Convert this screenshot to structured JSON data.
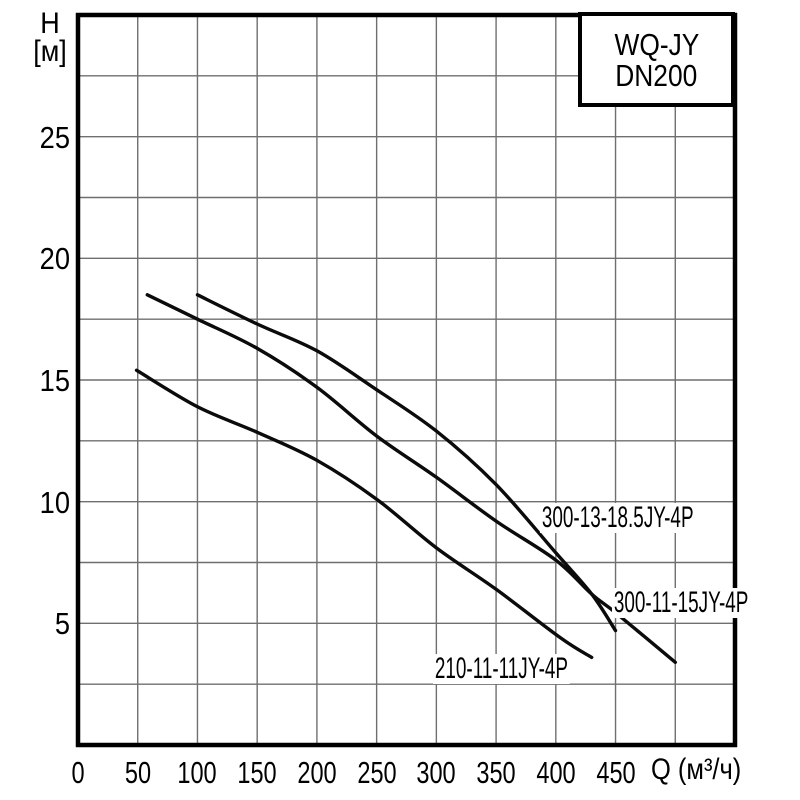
{
  "title_box": {
    "line1": "WQ-JY",
    "line2": "DN200"
  },
  "y_axis": {
    "title_line1": "H",
    "title_line2": "[м]",
    "tick_labels": [
      "25",
      "20",
      "15",
      "10",
      "5"
    ],
    "tick_values": [
      25,
      20,
      15,
      10,
      5
    ]
  },
  "x_axis": {
    "tick_labels": [
      "0",
      "50",
      "100",
      "150",
      "200",
      "250",
      "300",
      "350",
      "400",
      "450"
    ],
    "tick_values": [
      0,
      50,
      100,
      150,
      200,
      250,
      300,
      350,
      400,
      450
    ],
    "unit_label": "Q (м³/ч)"
  },
  "chart_data": {
    "type": "line",
    "title": "WQ-JY DN200",
    "xlabel": "Q (м³/ч)",
    "ylabel": "H [м]",
    "xlim": [
      0,
      550
    ],
    "ylim": [
      0,
      30
    ],
    "grid": {
      "visible": true,
      "x_step": 50,
      "y_step": 2.5,
      "color": "#6f6f6f"
    },
    "axis_color": "#000000",
    "curve_color": "#0b0b0b",
    "legend_position": "inline-labels",
    "series": [
      {
        "name": "300-13-18.5JY-4P",
        "points": [
          [
            100,
            18.5
          ],
          [
            150,
            17.3
          ],
          [
            200,
            16.2
          ],
          [
            250,
            14.6
          ],
          [
            300,
            12.9
          ],
          [
            350,
            10.7
          ],
          [
            400,
            7.9
          ],
          [
            430,
            6.2
          ],
          [
            450,
            4.7
          ]
        ]
      },
      {
        "name": "300-11-15JY-4P",
        "points": [
          [
            58,
            18.5
          ],
          [
            100,
            17.5
          ],
          [
            150,
            16.3
          ],
          [
            200,
            14.7
          ],
          [
            250,
            12.7
          ],
          [
            300,
            11.0
          ],
          [
            350,
            9.2
          ],
          [
            400,
            7.6
          ],
          [
            430,
            6.2
          ],
          [
            451,
            5.4
          ],
          [
            500,
            3.4
          ]
        ]
      },
      {
        "name": "210-11-11JY-4P",
        "points": [
          [
            49,
            15.4
          ],
          [
            100,
            13.9
          ],
          [
            150,
            12.85
          ],
          [
            200,
            11.7
          ],
          [
            250,
            10.1
          ],
          [
            300,
            8.1
          ],
          [
            350,
            6.4
          ],
          [
            404,
            4.4
          ],
          [
            430,
            3.6
          ]
        ]
      }
    ]
  }
}
